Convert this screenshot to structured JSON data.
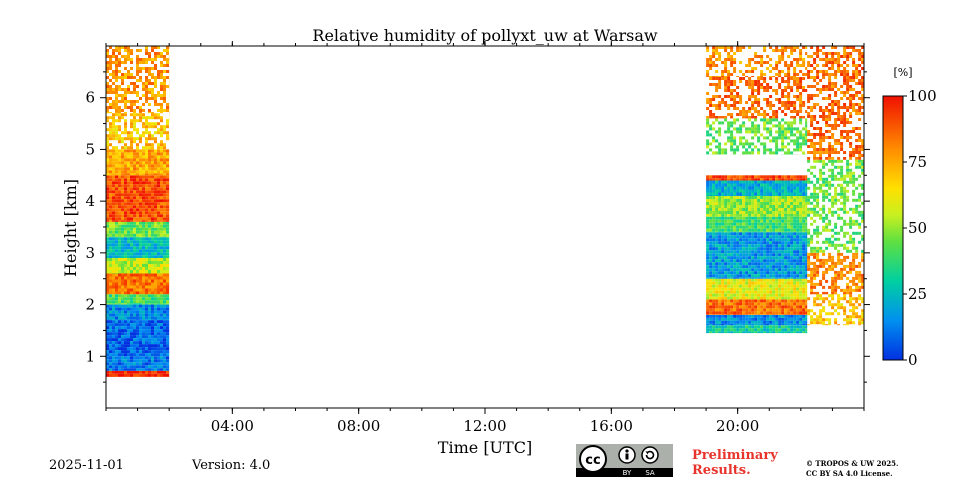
{
  "chart_data": {
    "type": "heatmap",
    "title": "Relative humidity of pollyxt_uw at Warsaw",
    "xlabel": "Time [UTC]",
    "ylabel": "Height [km]",
    "xlim_hours": [
      0,
      24
    ],
    "ylim_km": [
      0,
      7
    ],
    "x_ticks": [
      {
        "hour": 4,
        "label": "04:00"
      },
      {
        "hour": 8,
        "label": "08:00"
      },
      {
        "hour": 12,
        "label": "12:00"
      },
      {
        "hour": 16,
        "label": "16:00"
      },
      {
        "hour": 20,
        "label": "20:00"
      }
    ],
    "y_ticks": [
      {
        "km": 1,
        "label": "1"
      },
      {
        "km": 2,
        "label": "2"
      },
      {
        "km": 3,
        "label": "3"
      },
      {
        "km": 4,
        "label": "4"
      },
      {
        "km": 5,
        "label": "5"
      },
      {
        "km": 6,
        "label": "6"
      }
    ],
    "colorbar": {
      "unit_label": "[%]",
      "min": 0,
      "max": 100,
      "ticks": [
        {
          "value": 0,
          "label": "0"
        },
        {
          "value": 25,
          "label": "25"
        },
        {
          "value": 50,
          "label": "50"
        },
        {
          "value": 75,
          "label": "75"
        },
        {
          "value": 100,
          "label": "100"
        }
      ],
      "colormap": "jet"
    },
    "blocks": [
      {
        "name": "morning",
        "t_start": 0.0,
        "t_end": 2.0,
        "profile": [
          {
            "h0": 0.3,
            "h1": 0.6,
            "rh": null
          },
          {
            "h0": 0.6,
            "h1": 0.72,
            "rh": 95
          },
          {
            "h0": 0.72,
            "h1": 1.0,
            "rh": 12
          },
          {
            "h0": 1.0,
            "h1": 1.7,
            "rh": 8
          },
          {
            "h0": 1.7,
            "h1": 2.0,
            "rh": 15
          },
          {
            "h0": 2.0,
            "h1": 2.2,
            "rh": 40
          },
          {
            "h0": 2.2,
            "h1": 2.6,
            "rh": 85
          },
          {
            "h0": 2.6,
            "h1": 2.9,
            "rh": 55
          },
          {
            "h0": 2.9,
            "h1": 3.3,
            "rh": 25
          },
          {
            "h0": 3.3,
            "h1": 3.6,
            "rh": 45
          },
          {
            "h0": 3.6,
            "h1": 4.5,
            "rh": 90
          },
          {
            "h0": 4.5,
            "h1": 5.0,
            "rh": 75
          },
          {
            "h0": 5.0,
            "h1": 5.7,
            "rh": 70
          },
          {
            "h0": 5.7,
            "h1": 7.0,
            "rh": 78
          }
        ]
      },
      {
        "name": "evening",
        "t_start": 19.0,
        "t_end": 22.2,
        "profile": [
          {
            "h0": 1.45,
            "h1": 1.6,
            "rh": 30
          },
          {
            "h0": 1.6,
            "h1": 1.8,
            "rh": 15
          },
          {
            "h0": 1.8,
            "h1": 2.1,
            "rh": 85
          },
          {
            "h0": 2.1,
            "h1": 2.5,
            "rh": 60
          },
          {
            "h0": 2.5,
            "h1": 3.4,
            "rh": 18
          },
          {
            "h0": 3.4,
            "h1": 3.7,
            "rh": 40
          },
          {
            "h0": 3.7,
            "h1": 4.1,
            "rh": 50
          },
          {
            "h0": 4.1,
            "h1": 4.4,
            "rh": 22
          },
          {
            "h0": 4.4,
            "h1": 4.5,
            "rh": 92
          },
          {
            "h0": 4.9,
            "h1": 5.6,
            "rh": 45
          },
          {
            "h0": 5.6,
            "h1": 6.4,
            "rh": 85
          },
          {
            "h0": 6.4,
            "h1": 7.0,
            "rh": 80
          }
        ]
      },
      {
        "name": "late-evening",
        "t_start": 22.2,
        "t_end": 24.0,
        "profile": [
          {
            "h0": 1.6,
            "h1": 2.2,
            "rh": 70
          },
          {
            "h0": 2.2,
            "h1": 3.0,
            "rh": 80
          },
          {
            "h0": 3.0,
            "h1": 4.8,
            "rh": 45
          },
          {
            "h0": 4.8,
            "h1": 7.0,
            "rh": 85
          }
        ]
      }
    ]
  },
  "footer": {
    "date": "2025-11-01",
    "version": "Version: 4.0",
    "preliminary_line1": "Preliminary",
    "preliminary_line2": "Results.",
    "copyright_line1": "© TROPOS & UW 2025.",
    "copyright_line2": "CC BY SA 4.0 License.",
    "license_badge": {
      "cc": "cc",
      "by": "BY",
      "sa": "SA"
    }
  }
}
